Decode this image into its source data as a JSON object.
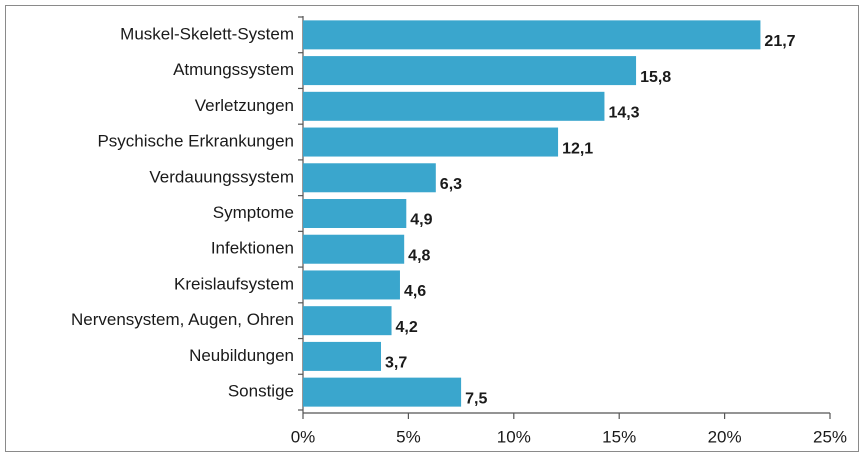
{
  "chart_data": {
    "type": "bar",
    "orientation": "horizontal",
    "categories": [
      "Muskel-Skelett-System",
      "Atmungssystem",
      "Verletzungen",
      "Psychische Erkrankungen",
      "Verdauungssystem",
      "Symptome",
      "Infektionen",
      "Kreislaufsystem",
      "Nervensystem, Augen, Ohren",
      "Neubildungen",
      "Sonstige"
    ],
    "values": [
      21.7,
      15.8,
      14.3,
      12.1,
      6.3,
      4.9,
      4.8,
      4.6,
      4.2,
      3.7,
      7.5
    ],
    "value_labels": [
      "21,7",
      "15,8",
      "14,3",
      "12,1",
      "6,3",
      "4,9",
      "4,8",
      "4,6",
      "4,2",
      "3,7",
      "7,5"
    ],
    "color": "#3aa6cd",
    "xlim": [
      0,
      25
    ],
    "xticks": [
      {
        "value": 0,
        "label": "0%"
      },
      {
        "value": 5,
        "label": "5%"
      },
      {
        "value": 10,
        "label": "10%"
      },
      {
        "value": 15,
        "label": "15%"
      },
      {
        "value": 20,
        "label": "20%"
      },
      {
        "value": 25,
        "label": "25%"
      }
    ],
    "grid": false
  }
}
